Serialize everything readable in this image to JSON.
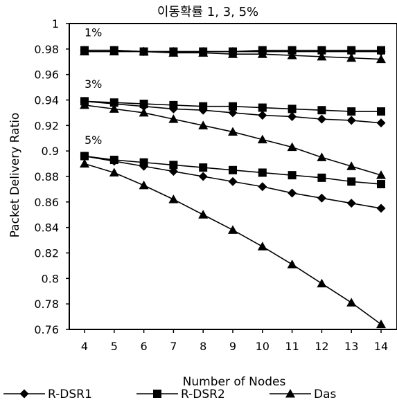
{
  "chart_data": {
    "type": "line",
    "title": "이동확률 1, 3, 5%",
    "xlabel": "Number of Nodes",
    "ylabel": "Packet Delivery Ratio",
    "x": [
      4,
      5,
      6,
      7,
      8,
      9,
      10,
      11,
      12,
      13,
      14
    ],
    "ylim": [
      0.76,
      1.0
    ],
    "yticks": [
      "0.76",
      "0.78",
      "0.8",
      "0.82",
      "0.84",
      "0.86",
      "0.88",
      "0.9",
      "0.92",
      "0.94",
      "0.96",
      "0.98",
      "1"
    ],
    "grid": false,
    "legend_position": "bottom",
    "annotations": [
      {
        "text": "1%",
        "x": 4,
        "y": 0.99
      },
      {
        "text": "3%",
        "x": 4,
        "y": 0.9495
      },
      {
        "text": "5%",
        "x": 4,
        "y": 0.9055
      }
    ],
    "legend": [
      {
        "name": "R-DSR1",
        "marker": "diamond"
      },
      {
        "name": "R-DSR2",
        "marker": "square"
      },
      {
        "name": "Das",
        "marker": "triangle"
      }
    ],
    "series": [
      {
        "name": "R-DSR1",
        "group": "1%",
        "marker": "diamond",
        "values": [
          0.979,
          0.979,
          0.978,
          0.978,
          0.978,
          0.978,
          0.978,
          0.978,
          0.978,
          0.978,
          0.978
        ]
      },
      {
        "name": "R-DSR2",
        "group": "1%",
        "marker": "square",
        "values": [
          0.979,
          0.979,
          0.978,
          0.978,
          0.978,
          0.978,
          0.979,
          0.979,
          0.979,
          0.979,
          0.979
        ]
      },
      {
        "name": "Das",
        "group": "1%",
        "marker": "triangle",
        "values": [
          0.978,
          0.978,
          0.978,
          0.977,
          0.977,
          0.976,
          0.976,
          0.975,
          0.974,
          0.973,
          0.972
        ]
      },
      {
        "name": "R-DSR1",
        "group": "3%",
        "marker": "diamond",
        "values": [
          0.939,
          0.937,
          0.935,
          0.933,
          0.932,
          0.93,
          0.928,
          0.927,
          0.925,
          0.924,
          0.922
        ]
      },
      {
        "name": "R-DSR2",
        "group": "3%",
        "marker": "square",
        "values": [
          0.939,
          0.938,
          0.937,
          0.936,
          0.935,
          0.935,
          0.934,
          0.933,
          0.932,
          0.931,
          0.931
        ]
      },
      {
        "name": "Das",
        "group": "3%",
        "marker": "triangle",
        "values": [
          0.936,
          0.933,
          0.93,
          0.925,
          0.92,
          0.915,
          0.909,
          0.903,
          0.895,
          0.888,
          0.881
        ]
      },
      {
        "name": "R-DSR1",
        "group": "5%",
        "marker": "diamond",
        "values": [
          0.896,
          0.892,
          0.888,
          0.884,
          0.88,
          0.876,
          0.872,
          0.867,
          0.863,
          0.859,
          0.855
        ]
      },
      {
        "name": "R-DSR2",
        "group": "5%",
        "marker": "square",
        "values": [
          0.896,
          0.893,
          0.891,
          0.889,
          0.887,
          0.885,
          0.883,
          0.881,
          0.879,
          0.876,
          0.874
        ]
      },
      {
        "name": "Das",
        "group": "5%",
        "marker": "triangle",
        "values": [
          0.89,
          0.883,
          0.873,
          0.862,
          0.85,
          0.838,
          0.825,
          0.811,
          0.796,
          0.781,
          0.764
        ]
      }
    ]
  }
}
